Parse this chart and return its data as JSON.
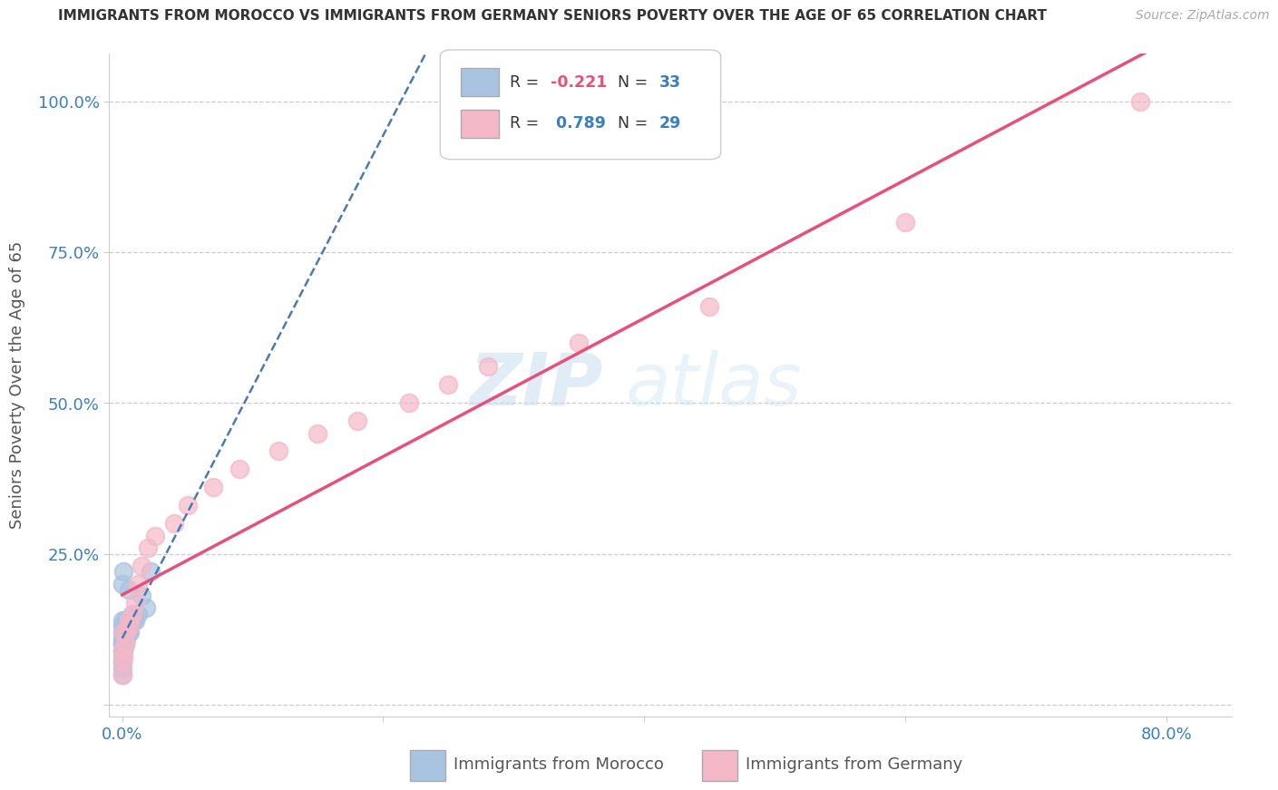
{
  "title": "IMMIGRANTS FROM MOROCCO VS IMMIGRANTS FROM GERMANY SENIORS POVERTY OVER THE AGE OF 65 CORRELATION CHART",
  "source": "Source: ZipAtlas.com",
  "ylabel": "Seniors Poverty Over the Age of 65",
  "xlim": [
    0.0,
    0.85
  ],
  "ylim": [
    -0.02,
    1.08
  ],
  "x_ticks": [
    0.0,
    0.2,
    0.4,
    0.6,
    0.8
  ],
  "x_tick_labels": [
    "0.0%",
    "",
    "",
    "",
    "80.0%"
  ],
  "y_ticks": [
    0.0,
    0.25,
    0.5,
    0.75,
    1.0
  ],
  "y_tick_labels": [
    "",
    "25.0%",
    "50.0%",
    "75.0%",
    "100.0%"
  ],
  "legend_labels": [
    "Immigrants from Morocco",
    "Immigrants from Germany"
  ],
  "legend_R": [
    "-0.221",
    "0.789"
  ],
  "legend_N": [
    "33",
    "29"
  ],
  "morocco_color": "#a8c4e0",
  "germany_color": "#f4b8c8",
  "morocco_line_color": "#4a7ab5",
  "germany_line_color": "#e8507a",
  "watermark_zip": "ZIP",
  "watermark_atlas": "atlas",
  "background_color": "#ffffff",
  "tick_color": "#3a7fc1",
  "morocco_x": [
    0.0,
    0.0,
    0.0,
    0.0,
    0.0,
    0.0,
    0.0,
    0.0,
    0.0,
    0.0,
    0.0,
    0.0,
    0.001,
    0.001,
    0.001,
    0.001,
    0.002,
    0.002,
    0.003,
    0.003,
    0.004,
    0.005,
    0.005,
    0.006,
    0.006,
    0.007,
    0.008,
    0.009,
    0.01,
    0.012,
    0.015,
    0.018,
    0.022
  ],
  "morocco_y": [
    0.05,
    0.06,
    0.07,
    0.08,
    0.09,
    0.1,
    0.1,
    0.11,
    0.12,
    0.13,
    0.14,
    0.2,
    0.09,
    0.1,
    0.11,
    0.22,
    0.1,
    0.14,
    0.11,
    0.13,
    0.12,
    0.12,
    0.19,
    0.12,
    0.13,
    0.14,
    0.15,
    0.14,
    0.14,
    0.15,
    0.18,
    0.16,
    0.22
  ],
  "germany_x": [
    0.0,
    0.0,
    0.0,
    0.001,
    0.001,
    0.002,
    0.003,
    0.005,
    0.006,
    0.008,
    0.01,
    0.012,
    0.015,
    0.02,
    0.025,
    0.04,
    0.05,
    0.07,
    0.09,
    0.12,
    0.15,
    0.18,
    0.22,
    0.25,
    0.28,
    0.35,
    0.45,
    0.6,
    0.78
  ],
  "germany_y": [
    0.05,
    0.07,
    0.09,
    0.08,
    0.12,
    0.1,
    0.12,
    0.14,
    0.13,
    0.15,
    0.17,
    0.2,
    0.23,
    0.26,
    0.28,
    0.3,
    0.33,
    0.36,
    0.39,
    0.42,
    0.45,
    0.47,
    0.5,
    0.53,
    0.56,
    0.6,
    0.66,
    0.8,
    1.0
  ]
}
